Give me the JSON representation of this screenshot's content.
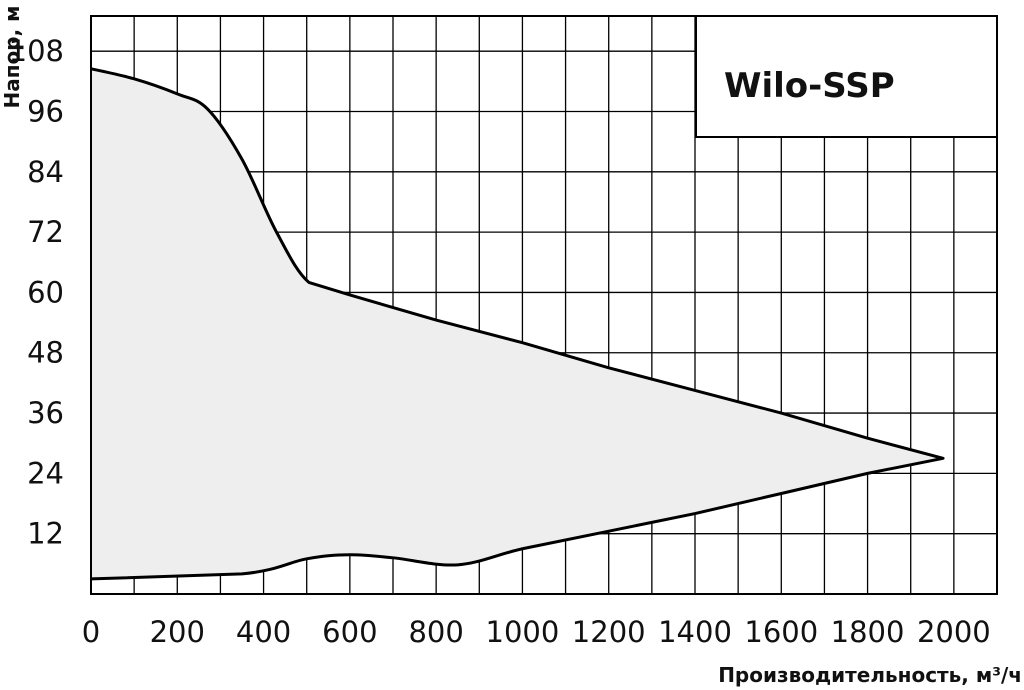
{
  "chart_data": {
    "type": "area",
    "title": "",
    "xlabel": "Производительность, м³/ч",
    "ylabel": "Напор, м",
    "xlim": [
      0,
      2100
    ],
    "ylim": [
      0,
      115
    ],
    "xticks": [
      0,
      200,
      400,
      600,
      800,
      1000,
      1200,
      1400,
      1600,
      1800,
      2000
    ],
    "yticks": [
      12,
      24,
      36,
      48,
      60,
      72,
      84,
      96,
      108
    ],
    "grid": true,
    "legend": {
      "label": "Wilo-SSP",
      "position": "top-right"
    },
    "colors": {
      "fill": "#eeeeee",
      "line": "#000000",
      "grid": "#000000"
    },
    "series": [
      {
        "name": "Wilo-SSP",
        "x": [
          0,
          100,
          200,
          270,
          350,
          430,
          505,
          600,
          800,
          1000,
          1200,
          1400,
          1600,
          1800,
          1975,
          1800,
          1600,
          1400,
          1200,
          1000,
          850,
          700,
          600,
          500,
          350,
          0
        ],
        "y": [
          104.5,
          102.5,
          99.5,
          96.5,
          86.5,
          72,
          62,
          59.5,
          54.5,
          50,
          45,
          40.5,
          36,
          31,
          27,
          24,
          20,
          16,
          12.5,
          9,
          5.8,
          7.2,
          7.8,
          7,
          4,
          3
        ]
      }
    ]
  }
}
